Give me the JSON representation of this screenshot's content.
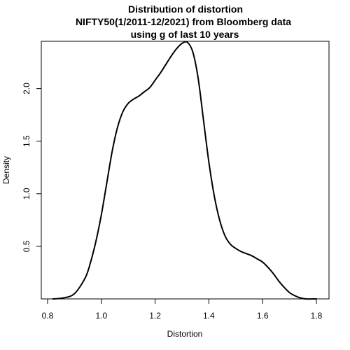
{
  "chart_data": {
    "type": "line",
    "title_lines": [
      "Distribution of distortion",
      "NIFTY50(1/2011-12/2021) from Bloomberg data",
      "using g of last 10 years"
    ],
    "xlabel": "Distortion",
    "ylabel": "Density",
    "xlim": [
      0.8,
      1.8
    ],
    "ylim": [
      0.0,
      2.45
    ],
    "x_ticks": [
      0.8,
      1.0,
      1.2,
      1.4,
      1.6,
      1.8
    ],
    "x_tick_labels": [
      "0.8",
      "1.0",
      "1.2",
      "1.4",
      "1.6",
      "1.8"
    ],
    "y_ticks": [
      0.5,
      1.0,
      1.5,
      2.0
    ],
    "y_tick_labels": [
      "0.5",
      "1.0",
      "1.5",
      "2.0"
    ],
    "grid": false,
    "line_color": "#000000",
    "series": [
      {
        "x": [
          0.82,
          0.86,
          0.9,
          0.94,
          0.96,
          0.98,
          1.0,
          1.02,
          1.04,
          1.06,
          1.08,
          1.1,
          1.12,
          1.14,
          1.16,
          1.18,
          1.2,
          1.22,
          1.24,
          1.26,
          1.28,
          1.3,
          1.32,
          1.34,
          1.36,
          1.38,
          1.4,
          1.42,
          1.44,
          1.46,
          1.48,
          1.5,
          1.52,
          1.54,
          1.56,
          1.58,
          1.6,
          1.62,
          1.64,
          1.66,
          1.68,
          1.7,
          1.72,
          1.74,
          1.76,
          1.8
        ],
        "y": [
          0.0,
          0.01,
          0.05,
          0.2,
          0.35,
          0.55,
          0.8,
          1.1,
          1.4,
          1.63,
          1.78,
          1.86,
          1.9,
          1.93,
          1.97,
          2.01,
          2.08,
          2.15,
          2.23,
          2.31,
          2.38,
          2.43,
          2.44,
          2.35,
          2.1,
          1.7,
          1.3,
          0.98,
          0.75,
          0.6,
          0.52,
          0.48,
          0.45,
          0.43,
          0.41,
          0.38,
          0.35,
          0.3,
          0.24,
          0.17,
          0.11,
          0.06,
          0.03,
          0.01,
          0.0,
          0.0
        ]
      }
    ]
  }
}
